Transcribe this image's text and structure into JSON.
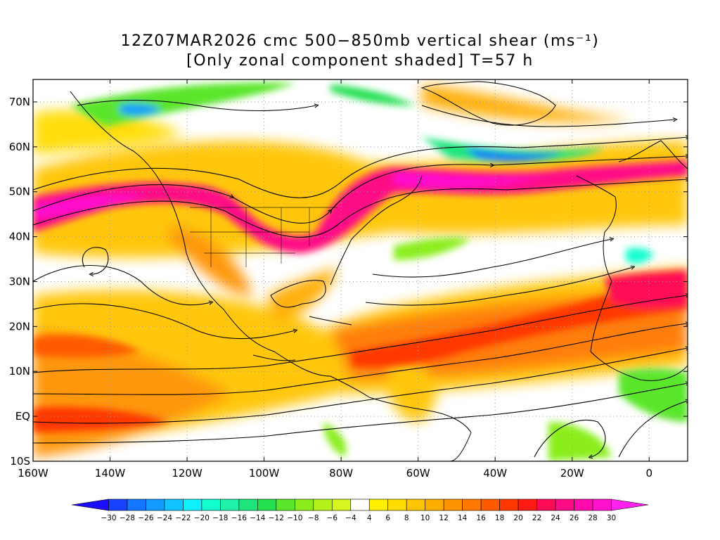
{
  "title_line1": "12Z07MAR2026 cmc 500−850mb vertical shear (ms⁻¹)",
  "title_line2": "[Only zonal component shaded] T=57 h",
  "map": {
    "lon_min": -160,
    "lon_max": 10,
    "lat_min": -10,
    "lat_max": 75,
    "lon_ticks": [
      {
        "value": -160,
        "label": "160W"
      },
      {
        "value": -140,
        "label": "140W"
      },
      {
        "value": -120,
        "label": "120W"
      },
      {
        "value": -100,
        "label": "100W"
      },
      {
        "value": -80,
        "label": "80W"
      },
      {
        "value": -60,
        "label": "60W"
      },
      {
        "value": -40,
        "label": "40W"
      },
      {
        "value": -20,
        "label": "20W"
      },
      {
        "value": 0,
        "label": "0"
      }
    ],
    "lat_ticks": [
      {
        "value": -10,
        "label": "10S"
      },
      {
        "value": 0,
        "label": "EQ"
      },
      {
        "value": 10,
        "label": "10N"
      },
      {
        "value": 20,
        "label": "20N"
      },
      {
        "value": 30,
        "label": "30N"
      },
      {
        "value": 40,
        "label": "40N"
      },
      {
        "value": 50,
        "label": "50N"
      },
      {
        "value": 60,
        "label": "60N"
      },
      {
        "value": 70,
        "label": "70N"
      }
    ],
    "grid": "dotted every 20° lon / 10° lat",
    "field": "zonal component of 500−850mb vertical shear, shaded; streamlines overlaid"
  },
  "colorbar": {
    "labels": [
      "-30",
      "-28",
      "-26",
      "-24",
      "-22",
      "-20",
      "-18",
      "-16",
      "-14",
      "-12",
      "-10",
      "-8",
      "-6",
      "-4",
      "4",
      "6",
      "8",
      "10",
      "12",
      "14",
      "16",
      "18",
      "20",
      "22",
      "24",
      "26",
      "28",
      "30"
    ],
    "colors": [
      "#1c0dff",
      "#1743ff",
      "#1476ff",
      "#119bff",
      "#10c4ff",
      "#0ef0ff",
      "#12ffd0",
      "#1ff2a8",
      "#1de57c",
      "#24e050",
      "#5ae62a",
      "#8bee1c",
      "#b3f21a",
      "#d8f520",
      "#ffffff",
      "#fff000",
      "#ffdc00",
      "#ffc400",
      "#ffac00",
      "#ff9200",
      "#ff7800",
      "#ff5a00",
      "#ff3700",
      "#ff1a14",
      "#ff0a55",
      "#ff0a87",
      "#ff0aac",
      "#ff11cf",
      "#ff22ef"
    ]
  }
}
